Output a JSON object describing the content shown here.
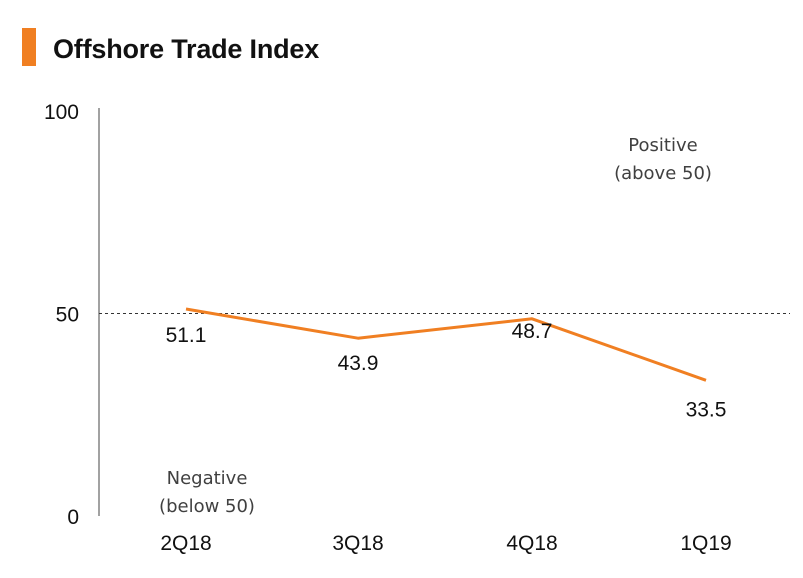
{
  "title": "Offshore Trade Index",
  "accent_color": "#f07f22",
  "chart_data": {
    "type": "line",
    "title": "Offshore Trade Index",
    "categories": [
      "2Q18",
      "3Q18",
      "4Q18",
      "1Q19"
    ],
    "series": [
      {
        "name": "Offshore Trade Index",
        "values": [
          51.1,
          43.9,
          48.7,
          33.5
        ],
        "color": "#f07f22"
      }
    ],
    "data_labels": [
      "51.1",
      "43.9",
      "48.7",
      "33.5"
    ],
    "ylim": [
      0,
      100
    ],
    "yticks": [
      0,
      50,
      100
    ],
    "ytick_labels": [
      "0",
      "50",
      "100"
    ],
    "reference_line": {
      "value": 50,
      "style": "dashed"
    },
    "annotations": {
      "positive": [
        "Positive",
        "(above 50)"
      ],
      "negative": [
        "Negative",
        "(below 50)"
      ]
    },
    "xlabel": "",
    "ylabel": "",
    "grid": false
  }
}
